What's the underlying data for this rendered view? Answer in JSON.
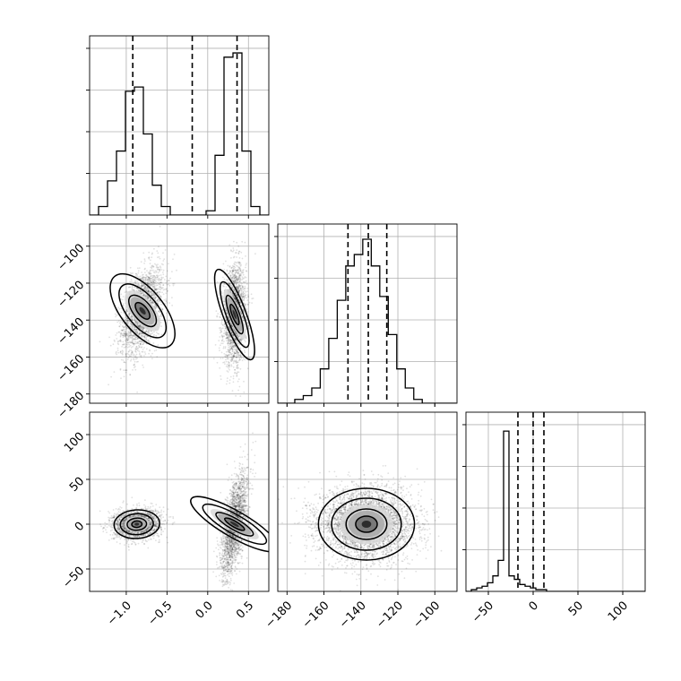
{
  "chart_data": {
    "type": "corner",
    "grid": true,
    "parameters": [
      {
        "range": [
          -1.45,
          0.75
        ],
        "ticks": [
          -1.0,
          -0.5,
          0.0,
          0.5
        ],
        "tick_labels": [
          "−1.0",
          "−0.5",
          "0.0",
          "0.5"
        ]
      },
      {
        "range": [
          -185,
          -88
        ],
        "ticks": [
          -180,
          -160,
          -140,
          -120,
          -100
        ],
        "tick_labels": [
          "−180",
          "−160",
          "−140",
          "−120",
          "−100"
        ]
      },
      {
        "range": [
          -75,
          125
        ],
        "ticks": [
          -50,
          0,
          50,
          100
        ],
        "tick_labels": [
          "−50",
          "0",
          "50",
          "100"
        ]
      }
    ],
    "histograms": [
      {
        "edges_start": -1.45,
        "bin_width": 0.11,
        "counts": [
          0,
          2,
          8,
          15,
          29,
          30,
          19,
          7,
          2,
          0,
          0,
          0,
          0,
          1,
          14,
          37,
          38,
          15,
          2,
          0
        ],
        "ylim": [
          0,
          42
        ],
        "quantiles": [
          -0.92,
          -0.19,
          0.36
        ]
      },
      {
        "edges_start": -185,
        "bin_width": 4.6,
        "counts": [
          0,
          0,
          1,
          2,
          4,
          9,
          17,
          27,
          36,
          39,
          43,
          36,
          28,
          18,
          9,
          4,
          1,
          0,
          0,
          0,
          0
        ],
        "ylim": [
          0,
          47
        ],
        "quantiles": [
          -147,
          -136,
          -126
        ]
      },
      {
        "edges_start": -75,
        "bin_width": 6,
        "counts": [
          0,
          1,
          2,
          3,
          5,
          9,
          18,
          93,
          9,
          7,
          4,
          3,
          2,
          1,
          1,
          0,
          0,
          0,
          0,
          0,
          0,
          0,
          0,
          0,
          0,
          0,
          0,
          0,
          0,
          0,
          0,
          0,
          0,
          0
        ],
        "ylim": [
          0,
          104
        ],
        "quantiles": [
          -17,
          0,
          12
        ]
      }
    ],
    "panels_2d": [
      {
        "x_param": 0,
        "y_param": 1,
        "clusters": [
          {
            "mean": [
              -0.8,
              -135
            ],
            "sd": [
              0.13,
              12
            ],
            "rho": 0.45,
            "n": 2200
          },
          {
            "mean": [
              0.33,
              -137
            ],
            "sd": [
              0.07,
              13
            ],
            "rho": 0.1,
            "n": 2200
          }
        ]
      },
      {
        "x_param": 0,
        "y_param": 2,
        "clusters": [
          {
            "mean": [
              -0.87,
              0
            ],
            "sd": [
              0.14,
              8
            ],
            "rho": 0.1,
            "n": 2200
          },
          {
            "mean": [
              0.33,
              0
            ],
            "sd": [
              0.08,
              28
            ],
            "rho": 0.6,
            "n": 2200
          }
        ]
      },
      {
        "x_param": 1,
        "y_param": 2,
        "clusters": [
          {
            "mean": [
              -137,
              0
            ],
            "sd": [
              13,
              20
            ],
            "rho": 0.0,
            "n": 4000
          }
        ]
      }
    ]
  }
}
